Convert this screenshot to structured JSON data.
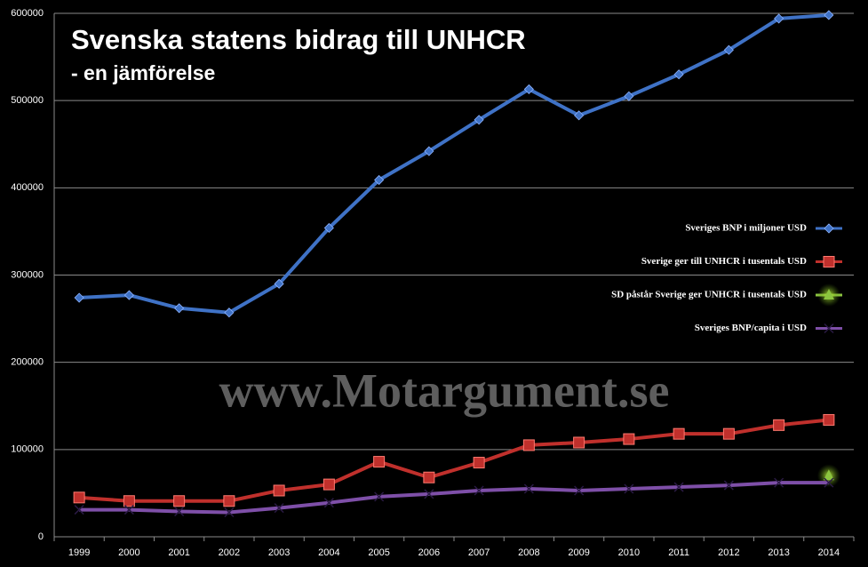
{
  "chart_data": {
    "type": "line",
    "title": "Svenska statens bidrag till UNHCR",
    "subtitle": "- en jämförelse",
    "watermark": "www.Motargument.se",
    "categories": [
      "1999",
      "2000",
      "2001",
      "2002",
      "2003",
      "2004",
      "2005",
      "2006",
      "2007",
      "2008",
      "2009",
      "2010",
      "2011",
      "2012",
      "2013",
      "2014"
    ],
    "ylim": [
      0,
      600000
    ],
    "yticks": [
      0,
      100000,
      200000,
      300000,
      400000,
      500000,
      600000
    ],
    "grid": true,
    "legend": "right",
    "series": [
      {
        "name": "Sveriges BNP i miljoner USD",
        "color": "#3f72c6",
        "marker": "diamond",
        "values": [
          274000,
          277000,
          262000,
          257000,
          290000,
          354000,
          409000,
          442000,
          478000,
          513000,
          483000,
          505000,
          530000,
          558000,
          594000,
          598000
        ]
      },
      {
        "name": "Sverige ger till UNHCR i tusentals USD",
        "color": "#c0302c",
        "marker": "square",
        "values": [
          45000,
          41000,
          41000,
          41000,
          53000,
          60000,
          86000,
          68000,
          85000,
          105000,
          108000,
          112000,
          118000,
          118000,
          128000,
          134000
        ]
      },
      {
        "name": "SD påstår Sverige ger UNHCR i tusentals USD",
        "color": "#8bc43f",
        "marker": "triangle",
        "values": [
          null,
          null,
          null,
          null,
          null,
          null,
          null,
          null,
          null,
          null,
          null,
          null,
          null,
          null,
          null,
          70000
        ]
      },
      {
        "name": "Sveriges BNP/capita i USD",
        "color": "#7e4fa8",
        "marker": "x",
        "values": [
          31000,
          31000,
          29000,
          28000,
          33000,
          39000,
          46000,
          49000,
          53000,
          55000,
          53000,
          55000,
          57000,
          59000,
          62000,
          62000
        ]
      }
    ]
  }
}
